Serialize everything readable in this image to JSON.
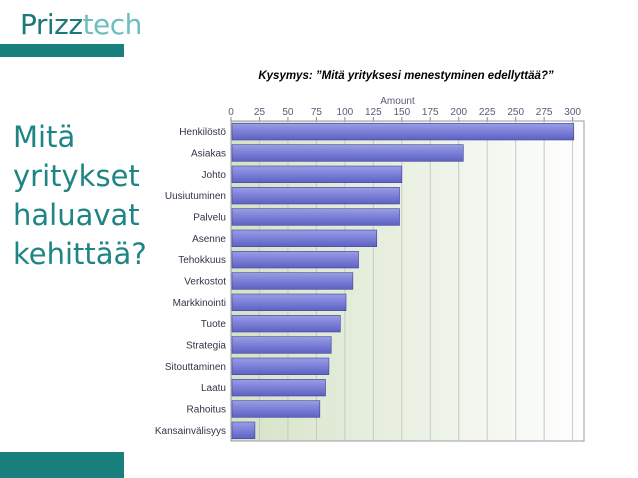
{
  "logo": {
    "part1": "Prizz",
    "part2": "tech"
  },
  "side_title": "Mitä yritykset haluavat kehittää?",
  "colors": {
    "accent": "#1a807e",
    "bar": "#7b7fd6",
    "bar_edge": "#3e4299"
  },
  "chart_data": {
    "type": "bar",
    "orientation": "horizontal",
    "title": "Kysymys: ”Mitä yrityksesi menestyminen edellyttää?”",
    "xlabel": "Amount",
    "ylabel": "",
    "xlim": [
      0,
      310
    ],
    "xticks": [
      0,
      25,
      50,
      75,
      100,
      125,
      150,
      175,
      200,
      225,
      250,
      275,
      300
    ],
    "grid": true,
    "categories": [
      "Henkilöstö",
      "Asiakas",
      "Johto",
      "Uusiutuminen",
      "Palvelu",
      "Asenne",
      "Tehokkuus",
      "Verkostot",
      "Markkinointi",
      "Tuote",
      "Strategia",
      "Sitouttaminen",
      "Laatu",
      "Rahoitus",
      "Kansainvälisyys"
    ],
    "values": [
      301,
      204,
      150,
      148,
      148,
      128,
      112,
      107,
      101,
      96,
      88,
      86,
      83,
      78,
      21
    ]
  }
}
